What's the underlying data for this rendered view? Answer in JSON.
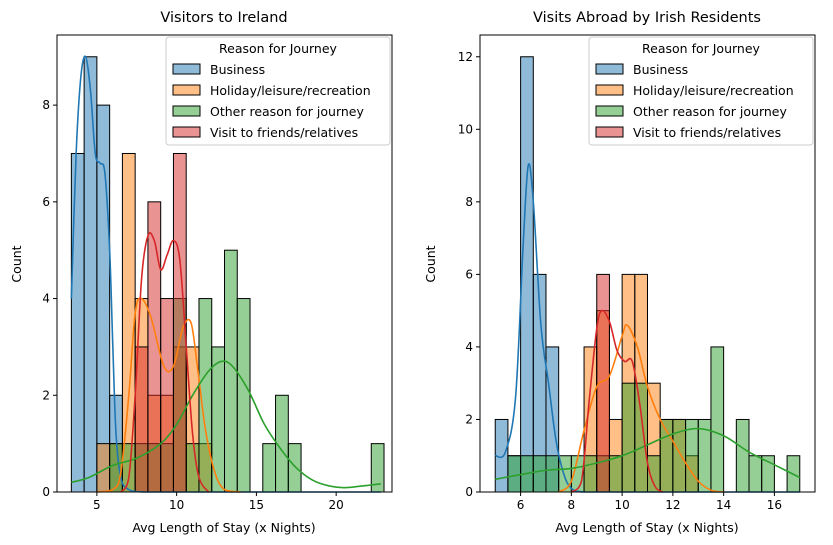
{
  "legend_title": "Reason for Journey",
  "legend_entries": [
    {
      "name": "Business",
      "fill": "#1f77b4",
      "line": "#1f77b4"
    },
    {
      "name": "Holiday/leisure/recreation",
      "fill": "#ff7f0e",
      "line": "#ff7f0e"
    },
    {
      "name": "Other reason for journey",
      "fill": "#2ca02c",
      "line": "#2ca02c"
    },
    {
      "name": "Visit to friends/relatives",
      "fill": "#d62728",
      "line": "#d62728"
    }
  ],
  "chart_data": [
    {
      "type": "bar",
      "subtype": "overlaid histogram with KDE curves",
      "title": "Visitors to Ireland",
      "xlabel": "Avg Length of Stay (x Nights)",
      "ylabel": "Count",
      "xlim": [
        2.5,
        23.5
      ],
      "ylim": [
        0,
        9.45
      ],
      "xticks": [
        5,
        10,
        15,
        20
      ],
      "yticks": [
        0,
        2,
        4,
        6,
        8
      ],
      "legend_position": "upper right",
      "series": [
        {
          "name": "Business",
          "bins": [
            [
              3.4,
              4.2,
              7
            ],
            [
              4.2,
              5.0,
              9
            ],
            [
              5.0,
              5.8,
              8
            ],
            [
              5.8,
              6.6,
              2
            ]
          ],
          "kde": [
            [
              3.4,
              4.0
            ],
            [
              3.7,
              7.0
            ],
            [
              4.0,
              8.6
            ],
            [
              4.3,
              9.0
            ],
            [
              4.6,
              8.3
            ],
            [
              4.9,
              7.0
            ],
            [
              5.2,
              6.8
            ],
            [
              5.5,
              6.6
            ],
            [
              5.8,
              5.0
            ],
            [
              6.0,
              3.0
            ],
            [
              6.2,
              1.2
            ],
            [
              6.5,
              0.3
            ],
            [
              7.0,
              0.05
            ],
            [
              8.0,
              0.0
            ],
            [
              10.0,
              0.0
            ],
            [
              15.0,
              0.0
            ],
            [
              20.0,
              0.0
            ],
            [
              22.8,
              0.0
            ]
          ]
        },
        {
          "name": "Holiday/leisure/recreation",
          "bins": [
            [
              5.0,
              5.8,
              1
            ],
            [
              5.8,
              6.6,
              1
            ],
            [
              6.6,
              7.4,
              7
            ],
            [
              7.4,
              8.2,
              4
            ],
            [
              8.2,
              9.0,
              2
            ],
            [
              9.0,
              9.8,
              2
            ],
            [
              9.8,
              10.6,
              3
            ],
            [
              10.6,
              11.4,
              3
            ],
            [
              11.4,
              12.2,
              1
            ]
          ],
          "kde": [
            [
              5.0,
              0.0
            ],
            [
              6.0,
              0.05
            ],
            [
              6.5,
              0.4
            ],
            [
              7.0,
              2.0
            ],
            [
              7.4,
              3.7
            ],
            [
              7.8,
              4.0
            ],
            [
              8.4,
              3.6
            ],
            [
              9.2,
              2.6
            ],
            [
              9.8,
              2.6
            ],
            [
              10.4,
              3.4
            ],
            [
              10.9,
              3.5
            ],
            [
              11.3,
              2.6
            ],
            [
              11.8,
              1.3
            ],
            [
              12.4,
              0.4
            ],
            [
              13.0,
              0.05
            ],
            [
              14.0,
              0.0
            ]
          ]
        },
        {
          "name": "Other reason for journey",
          "bins": [
            [
              5.8,
              6.6,
              1
            ],
            [
              6.6,
              7.4,
              1
            ],
            [
              7.4,
              8.2,
              1
            ],
            [
              8.2,
              9.0,
              1
            ],
            [
              9.0,
              9.8,
              1
            ],
            [
              9.8,
              10.6,
              4
            ],
            [
              10.6,
              11.4,
              1
            ],
            [
              11.4,
              12.2,
              4
            ],
            [
              12.2,
              13.0,
              3
            ],
            [
              13.0,
              13.8,
              5
            ],
            [
              13.8,
              14.6,
              4
            ],
            [
              15.4,
              16.2,
              1
            ],
            [
              16.2,
              17.0,
              2
            ],
            [
              17.0,
              17.8,
              1
            ],
            [
              22.2,
              23.0,
              1
            ]
          ],
          "kde": [
            [
              3.4,
              0.2
            ],
            [
              4.5,
              0.3
            ],
            [
              6.0,
              0.55
            ],
            [
              7.5,
              0.7
            ],
            [
              9.0,
              1.0
            ],
            [
              10.0,
              1.4
            ],
            [
              11.0,
              2.0
            ],
            [
              12.0,
              2.5
            ],
            [
              12.8,
              2.7
            ],
            [
              13.5,
              2.6
            ],
            [
              14.5,
              2.1
            ],
            [
              15.5,
              1.4
            ],
            [
              16.5,
              0.9
            ],
            [
              17.5,
              0.5
            ],
            [
              18.5,
              0.25
            ],
            [
              19.5,
              0.13
            ],
            [
              20.5,
              0.09
            ],
            [
              21.5,
              0.12
            ],
            [
              22.8,
              0.17
            ]
          ]
        },
        {
          "name": "Visit to friends/relatives",
          "bins": [
            [
              7.4,
              8.2,
              3
            ],
            [
              8.2,
              9.0,
              6
            ],
            [
              9.0,
              9.8,
              4
            ],
            [
              9.8,
              10.6,
              7
            ]
          ],
          "kde": [
            [
              6.5,
              0.0
            ],
            [
              7.0,
              0.3
            ],
            [
              7.4,
              2.0
            ],
            [
              7.8,
              4.4
            ],
            [
              8.2,
              5.3
            ],
            [
              8.6,
              5.2
            ],
            [
              9.0,
              4.6
            ],
            [
              9.4,
              4.9
            ],
            [
              9.8,
              5.2
            ],
            [
              10.2,
              4.8
            ],
            [
              10.6,
              3.0
            ],
            [
              11.0,
              1.2
            ],
            [
              11.4,
              0.3
            ],
            [
              12.0,
              0.0
            ]
          ]
        }
      ]
    },
    {
      "type": "bar",
      "subtype": "overlaid histogram with KDE curves",
      "title": "Visits Abroad by Irish Residents",
      "xlabel": "Avg Length of Stay (x Nights)",
      "ylabel": "Count",
      "xlim": [
        4.4,
        17.6
      ],
      "ylim": [
        0,
        12.6
      ],
      "xticks": [
        6,
        8,
        10,
        12,
        14,
        16
      ],
      "yticks": [
        0,
        2,
        4,
        6,
        8,
        10,
        12
      ],
      "legend_position": "upper right",
      "series": [
        {
          "name": "Business",
          "bins": [
            [
              5.0,
              5.5,
              2
            ],
            [
              5.5,
              6.0,
              1
            ],
            [
              6.0,
              6.5,
              12
            ],
            [
              6.5,
              7.0,
              6
            ],
            [
              7.0,
              7.5,
              4
            ]
          ],
          "kde": [
            [
              5.0,
              1.0
            ],
            [
              5.4,
              1.1
            ],
            [
              5.8,
              2.6
            ],
            [
              6.1,
              6.8
            ],
            [
              6.3,
              9.0
            ],
            [
              6.5,
              8.0
            ],
            [
              6.8,
              4.6
            ],
            [
              7.1,
              3.0
            ],
            [
              7.4,
              1.4
            ],
            [
              7.7,
              0.5
            ],
            [
              8.0,
              0.1
            ],
            [
              8.5,
              0.0
            ],
            [
              10.0,
              0.0
            ],
            [
              12.0,
              0.0
            ],
            [
              14.0,
              0.0
            ],
            [
              17.0,
              0.0
            ]
          ]
        },
        {
          "name": "Holiday/leisure/recreation",
          "bins": [
            [
              8.5,
              9.0,
              4
            ],
            [
              9.0,
              9.5,
              5
            ],
            [
              9.5,
              10.0,
              2
            ],
            [
              10.0,
              10.5,
              6
            ],
            [
              10.5,
              11.0,
              6
            ],
            [
              11.0,
              11.5,
              3
            ],
            [
              11.5,
              12.0,
              2
            ],
            [
              12.0,
              12.5,
              2
            ],
            [
              12.5,
              13.0,
              1
            ]
          ],
          "kde": [
            [
              7.5,
              0.0
            ],
            [
              8.0,
              0.3
            ],
            [
              8.5,
              1.7
            ],
            [
              9.0,
              2.9
            ],
            [
              9.5,
              3.2
            ],
            [
              10.0,
              4.3
            ],
            [
              10.2,
              4.6
            ],
            [
              10.6,
              4.0
            ],
            [
              11.0,
              2.9
            ],
            [
              11.5,
              2.0
            ],
            [
              12.0,
              1.4
            ],
            [
              12.5,
              0.8
            ],
            [
              13.0,
              0.3
            ],
            [
              13.5,
              0.05
            ],
            [
              14.0,
              0.0
            ]
          ]
        },
        {
          "name": "Other reason for journey",
          "bins": [
            [
              5.5,
              6.0,
              1
            ],
            [
              6.0,
              6.5,
              1
            ],
            [
              6.5,
              7.0,
              1
            ],
            [
              7.0,
              7.5,
              1
            ],
            [
              7.5,
              8.0,
              1
            ],
            [
              8.0,
              8.5,
              1
            ],
            [
              8.5,
              9.0,
              1
            ],
            [
              9.0,
              9.5,
              1
            ],
            [
              9.5,
              10.0,
              1
            ],
            [
              10.0,
              10.5,
              3
            ],
            [
              10.5,
              11.0,
              3
            ],
            [
              11.0,
              11.5,
              1
            ],
            [
              11.5,
              12.0,
              2
            ],
            [
              12.0,
              12.5,
              2
            ],
            [
              12.5,
              13.0,
              2
            ],
            [
              13.0,
              13.5,
              2
            ],
            [
              13.5,
              14.0,
              4
            ],
            [
              14.5,
              15.0,
              2
            ],
            [
              15.0,
              15.5,
              1
            ],
            [
              15.5,
              16.0,
              1
            ],
            [
              16.5,
              17.0,
              1
            ]
          ],
          "kde": [
            [
              5.0,
              0.35
            ],
            [
              6.0,
              0.48
            ],
            [
              7.0,
              0.6
            ],
            [
              8.0,
              0.65
            ],
            [
              9.0,
              0.8
            ],
            [
              10.0,
              1.0
            ],
            [
              11.0,
              1.3
            ],
            [
              12.0,
              1.6
            ],
            [
              13.0,
              1.75
            ],
            [
              14.0,
              1.55
            ],
            [
              15.0,
              1.1
            ],
            [
              16.0,
              0.75
            ],
            [
              17.0,
              0.4
            ]
          ]
        },
        {
          "name": "Visit to friends/relatives",
          "bins": [
            [
              9.0,
              9.5,
              6
            ]
          ],
          "kde": [
            [
              8.0,
              0.0
            ],
            [
              8.4,
              0.3
            ],
            [
              8.7,
              2.5
            ],
            [
              9.0,
              4.5
            ],
            [
              9.2,
              5.0
            ],
            [
              9.5,
              4.7
            ],
            [
              9.8,
              3.9
            ],
            [
              10.1,
              3.6
            ],
            [
              10.4,
              3.6
            ],
            [
              10.7,
              2.4
            ],
            [
              11.0,
              0.8
            ],
            [
              11.3,
              0.15
            ],
            [
              11.6,
              0.0
            ]
          ]
        }
      ]
    }
  ]
}
